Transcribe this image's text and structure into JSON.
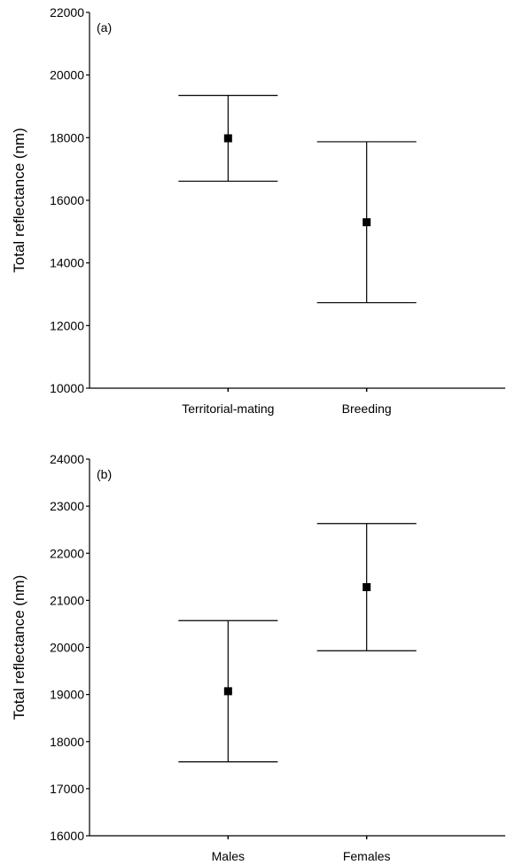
{
  "chart_data": [
    {
      "type": "errorbar",
      "annotation": "(a)",
      "ylabel": "Total reflectance (nm)",
      "categories": [
        "Territorial-mating",
        "Breeding"
      ],
      "values": [
        17980,
        15300
      ],
      "errors": [
        1370,
        2570
      ],
      "color": "#000000",
      "ylim": [
        10000,
        22000
      ],
      "yticks": [
        10000,
        12000,
        14000,
        16000,
        18000,
        20000,
        22000
      ]
    },
    {
      "type": "errorbar",
      "annotation": "(b)",
      "ylabel": "Total reflectance (nm)",
      "categories": [
        "Males",
        "Females"
      ],
      "values": [
        19070,
        21280
      ],
      "errors": [
        1500,
        1350
      ],
      "color": "#000000",
      "ylim": [
        16000,
        24000
      ],
      "yticks": [
        16000,
        17000,
        18000,
        19000,
        20000,
        21000,
        22000,
        23000,
        24000
      ]
    }
  ]
}
